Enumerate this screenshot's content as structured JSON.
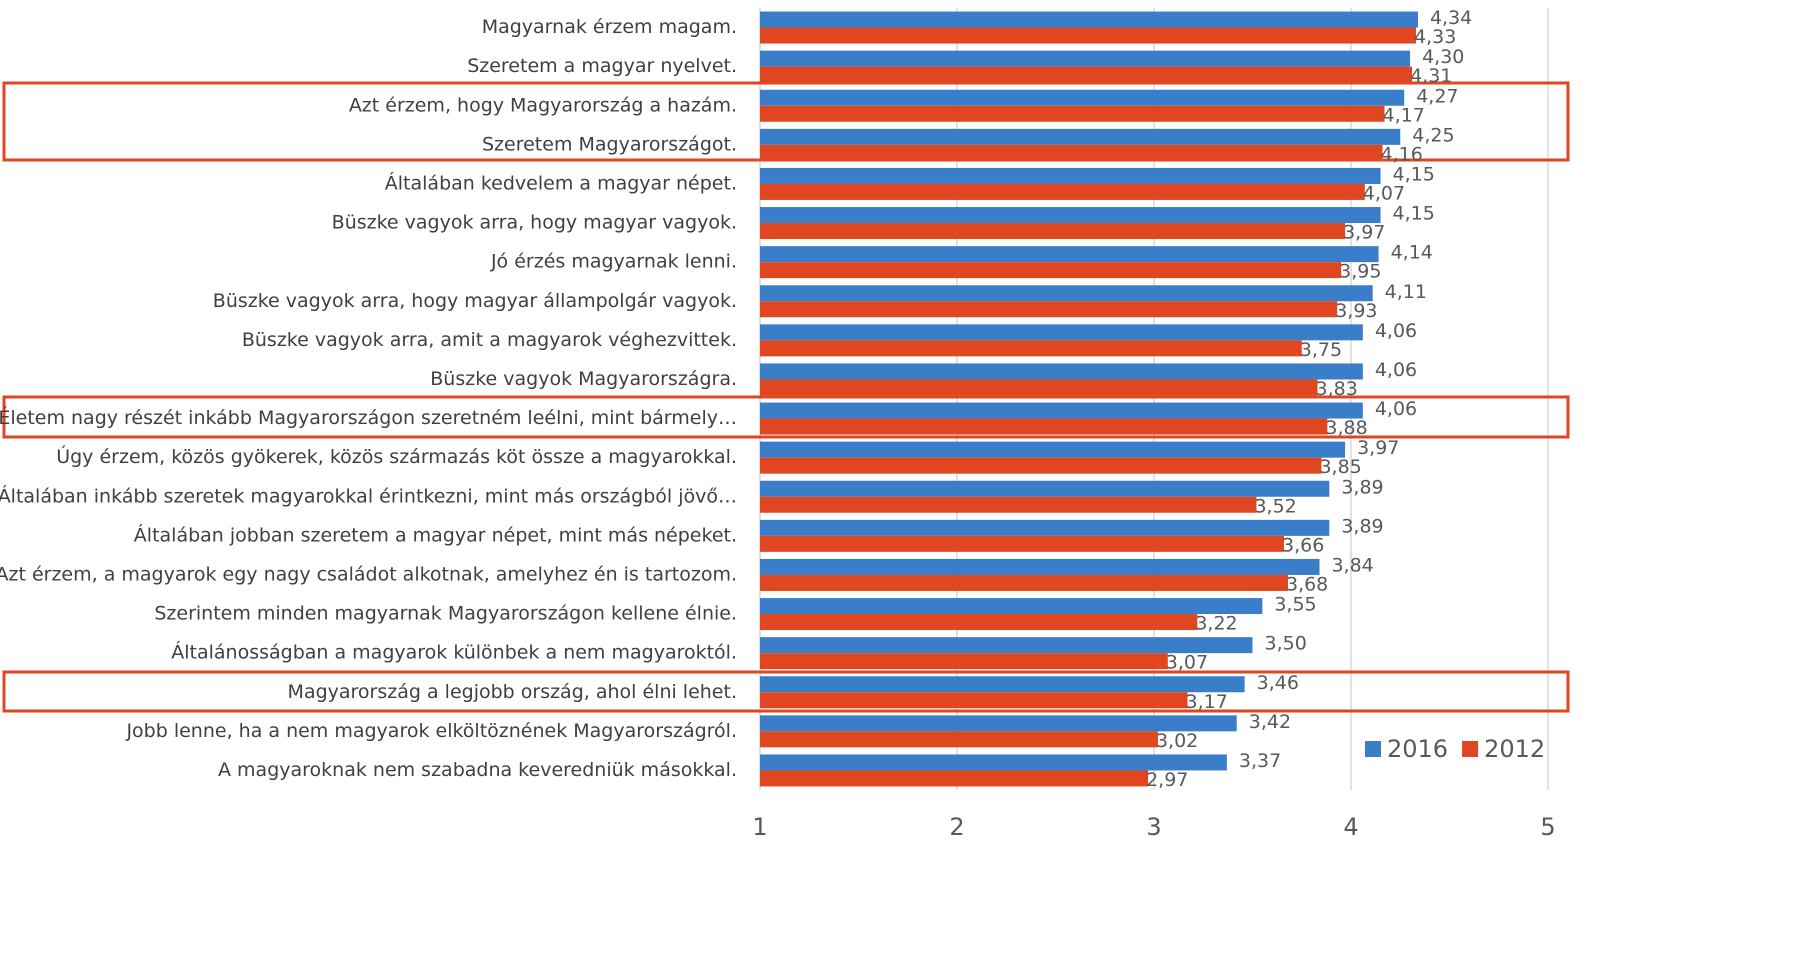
{
  "chart_data": {
    "type": "hbar",
    "categories": [
      "Magyarnak  érzem magam.",
      "Szeretem a magyar nyelvet.",
      "Azt érzem, hogy Magyarország a hazám.",
      "Szeretem Magyarországot.",
      "Általában kedvelem a magyar népet.",
      "Büszke vagyok arra, hogy magyar  vagyok.",
      "Jó érzés magyarnak  lenni.",
      "Büszke vagyok arra, hogy magyar állampolgár vagyok.",
      "Büszke vagyok arra, amit a magyarok véghezvittek.",
      "Büszke vagyok Magyarországra.",
      "Életem nagy részét inkább Magyarországon szeretném leélni, mint bármely…",
      "Úgy érzem, közös gyökerek, közös származás köt össze a magyarokkal.",
      "Általában inkább szeretek magyarokkal érintkezni, mint más országból jövő…",
      "Általában jobban szeretem a magyar népet, mint más népeket.",
      "Azt érzem, a magyarok egy nagy családot alkotnak, amelyhez én is tartozom.",
      "Szerintem minden magyarnak  Magyarországon  kellene élnie.",
      "Általánosságban a magyarok különbek a nem magyaroktól.",
      "Magyarország a legjobb ország, ahol élni lehet.",
      "Jobb lenne, ha a nem magyarok elköltöznének Magyarországról.",
      "A magyaroknak nem szabadna keveredniük másokkal."
    ],
    "series": [
      {
        "name": "2016",
        "color": "#3a7dc9",
        "values": [
          4.34,
          4.3,
          4.27,
          4.25,
          4.15,
          4.15,
          4.14,
          4.11,
          4.06,
          4.06,
          4.06,
          3.97,
          3.89,
          3.89,
          3.84,
          3.55,
          3.5,
          3.46,
          3.42,
          3.37
        ],
        "value_labels": [
          "4,34",
          "4,30",
          "4,27",
          "4,25",
          "4,15",
          "4,15",
          "4,14",
          "4,11",
          "4,06",
          "4,06",
          "4,06",
          "3,97",
          "3,89",
          "3,89",
          "3,84",
          "3,55",
          "3,50",
          "3,46",
          "3,42",
          "3,37"
        ]
      },
      {
        "name": "2012",
        "color": "#e0461f",
        "values": [
          4.33,
          4.31,
          4.17,
          4.16,
          4.07,
          3.97,
          3.95,
          3.93,
          3.75,
          3.83,
          3.88,
          3.85,
          3.52,
          3.66,
          3.68,
          3.22,
          3.07,
          3.17,
          3.02,
          2.97
        ],
        "value_labels": [
          "4,33",
          "4,31",
          "4,17",
          "4,16",
          "4,07",
          "3,97",
          "3,95",
          "3,93",
          "3,75",
          "3,83",
          "3,88",
          "3,85",
          "3,52",
          "3,66",
          "3,68",
          "3,22",
          "3,07",
          "3,17",
          "3,02",
          "2,97"
        ]
      }
    ],
    "xlim": [
      1,
      5
    ],
    "xticks": [
      1,
      2,
      3,
      4,
      5
    ],
    "grid": true,
    "legend": "bottom-right"
  }
}
